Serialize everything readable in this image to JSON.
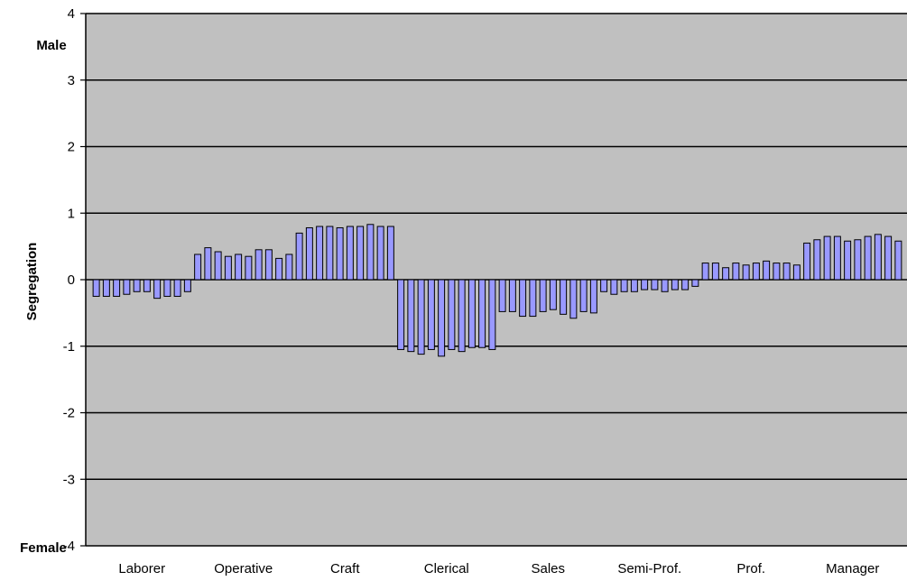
{
  "chart_data": {
    "type": "bar",
    "title": "",
    "ylabel": "Segregation",
    "xlabel": "",
    "ylim": [
      -4,
      4
    ],
    "y_ticks": [
      4,
      3,
      2,
      1,
      0,
      -1,
      -2,
      -3,
      -4
    ],
    "grid": true,
    "legend": "none",
    "y_annotations": {
      "top": "Male",
      "bottom": "Female"
    },
    "groups": [
      {
        "label": "Laborer",
        "values": [
          -0.25,
          -0.25,
          -0.25,
          -0.22,
          -0.18,
          -0.18,
          -0.28,
          -0.25,
          -0.25,
          -0.18
        ]
      },
      {
        "label": "Operative",
        "values": [
          0.38,
          0.48,
          0.42,
          0.35,
          0.38,
          0.35,
          0.45,
          0.45,
          0.32,
          0.38
        ]
      },
      {
        "label": "Craft",
        "values": [
          0.7,
          0.78,
          0.8,
          0.8,
          0.78,
          0.8,
          0.8,
          0.83,
          0.8,
          0.8
        ]
      },
      {
        "label": "Clerical",
        "values": [
          -1.05,
          -1.08,
          -1.12,
          -1.05,
          -1.15,
          -1.05,
          -1.08,
          -1.02,
          -1.02,
          -1.05
        ]
      },
      {
        "label": "Sales",
        "values": [
          -0.48,
          -0.48,
          -0.55,
          -0.55,
          -0.48,
          -0.45,
          -0.52,
          -0.58,
          -0.48,
          -0.5
        ]
      },
      {
        "label": "Semi-Prof.",
        "values": [
          -0.18,
          -0.22,
          -0.18,
          -0.18,
          -0.15,
          -0.15,
          -0.18,
          -0.15,
          -0.15,
          -0.1
        ]
      },
      {
        "label": "Prof.",
        "values": [
          0.25,
          0.25,
          0.18,
          0.25,
          0.22,
          0.25,
          0.28,
          0.25,
          0.25,
          0.22
        ]
      },
      {
        "label": "Manager",
        "values": [
          0.55,
          0.6,
          0.65,
          0.65,
          0.58,
          0.6,
          0.65,
          0.68,
          0.65,
          0.58
        ]
      }
    ],
    "colors": {
      "plot_bg": "#c0c0c0",
      "bar_fill": "#9999ff",
      "bar_stroke": "#000000",
      "grid": "#000000",
      "axis": "#000000"
    }
  }
}
